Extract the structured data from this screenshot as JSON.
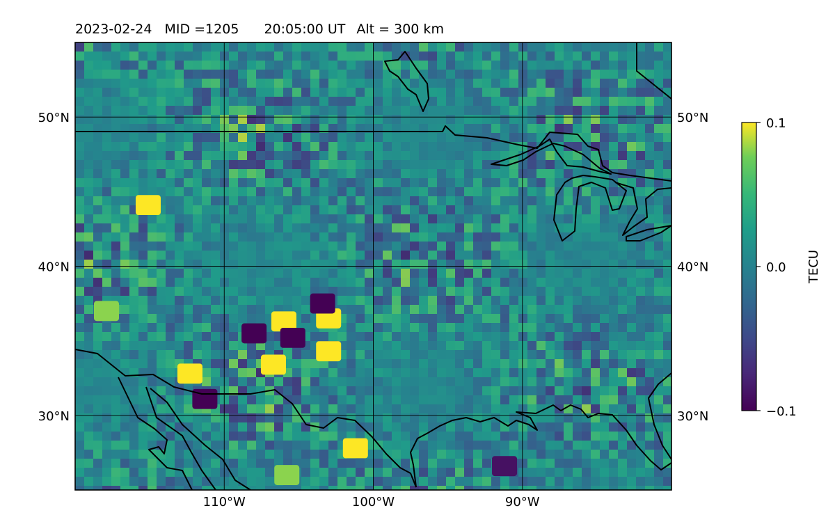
{
  "title": {
    "date": "2023-02-24",
    "mid": "MID =1205",
    "time": "20:05:00  UT",
    "alt": "Alt = 300 km"
  },
  "map": {
    "lon_range": [
      -120,
      -80
    ],
    "lat_range": [
      25,
      55
    ],
    "lon_ticks": [
      {
        "value": -110,
        "label": "110°W"
      },
      {
        "value": -100,
        "label": "100°W"
      },
      {
        "value": -90,
        "label": "90°W"
      }
    ],
    "lat_ticks": [
      {
        "value": 50,
        "label": "50°N"
      },
      {
        "value": 40,
        "label": "40°N"
      },
      {
        "value": 30,
        "label": "30°N"
      }
    ],
    "grid": true
  },
  "colorbar": {
    "label": "TECU",
    "colormap": "viridis",
    "ticks": [
      {
        "value": 0.1,
        "label": "0.1"
      },
      {
        "value": 0.0,
        "label": "0.0"
      },
      {
        "value": -0.1,
        "label": "−0.1"
      }
    ],
    "range": [
      -0.1,
      0.1
    ]
  },
  "colors": {
    "viridis_low": "#440154",
    "viridis_mid": "#21908d",
    "viridis_high": "#fde725",
    "background_field": "#2a8a8a",
    "coastline": "#000000"
  },
  "chart_data": {
    "type": "heatmap",
    "title": "2023-02-24  MID =1205    20:05:00  UT  Alt = 300 km",
    "colorbar_label": "TECU",
    "zlim": [
      -0.1,
      0.1
    ],
    "anomalies": [
      {
        "lon": -112.3,
        "lat": 32.8,
        "value": 0.1
      },
      {
        "lon": -106.7,
        "lat": 33.4,
        "value": 0.1
      },
      {
        "lon": -101.2,
        "lat": 27.8,
        "value": 0.1
      },
      {
        "lon": -105.8,
        "lat": 26.0,
        "value": 0.08
      },
      {
        "lon": -106.0,
        "lat": 36.3,
        "value": 0.1
      },
      {
        "lon": -103.0,
        "lat": 36.5,
        "value": 0.1
      },
      {
        "lon": -103.0,
        "lat": 34.3,
        "value": 0.1
      },
      {
        "lon": -117.9,
        "lat": 37.0,
        "value": 0.08
      },
      {
        "lon": -115.1,
        "lat": 44.1,
        "value": 0.1
      },
      {
        "lon": -111.3,
        "lat": 31.1,
        "value": -0.1
      },
      {
        "lon": -105.4,
        "lat": 35.2,
        "value": -0.1
      },
      {
        "lon": -108.0,
        "lat": 35.5,
        "value": -0.1
      },
      {
        "lon": -103.4,
        "lat": 37.5,
        "value": -0.1
      },
      {
        "lon": -91.2,
        "lat": 26.6,
        "value": -0.09
      }
    ]
  }
}
